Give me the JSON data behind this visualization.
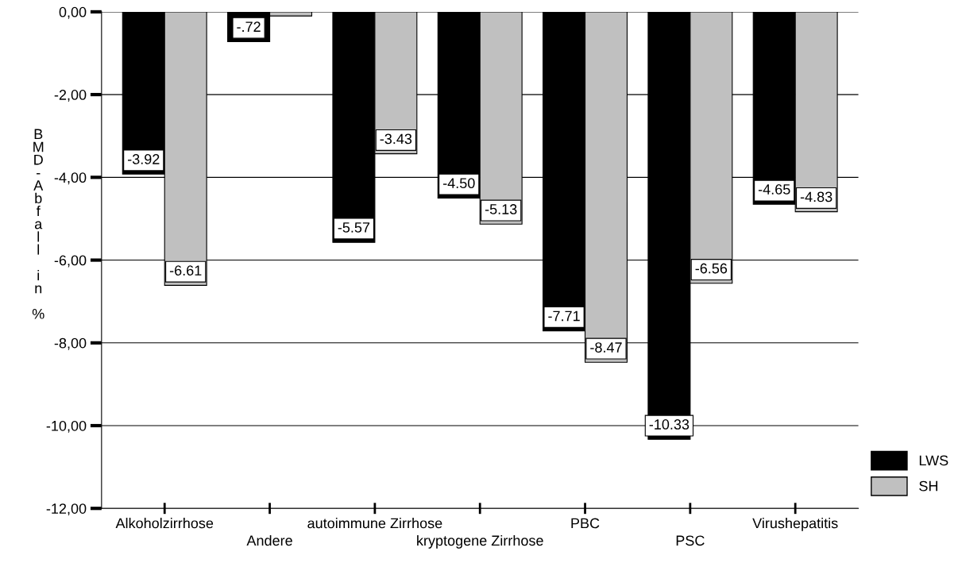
{
  "chart_data": {
    "type": "bar",
    "categories": [
      "Alkoholzirrhose",
      "Andere",
      "autoimmune Zirrhose",
      "kryptogene Zirrhose",
      "PBC",
      "PSC",
      "Virushepatitis"
    ],
    "ylabel": "BMD-Abfall in %",
    "series": [
      {
        "name": "LWS",
        "color": "#000000",
        "values": [
          -3.92,
          -0.72,
          -5.57,
          -4.5,
          -7.71,
          -10.33,
          -4.65
        ],
        "value_labels": [
          "-3.92",
          "-.72",
          "-5.57",
          "-4.50",
          "-7.71",
          "-10.33",
          "-4.65"
        ]
      },
      {
        "name": "SH",
        "color": "#c0c0c0",
        "values": [
          -6.61,
          -0.1,
          -3.43,
          -5.13,
          -8.47,
          -6.56,
          -4.83
        ],
        "value_labels": [
          "-6.61",
          null,
          "-3.43",
          "-5.13",
          "-8.47",
          "-6.56",
          "-4.83"
        ]
      }
    ],
    "ylim": [
      -12,
      0
    ],
    "yticks": [
      {
        "value": 0,
        "label": "0,00"
      },
      {
        "value": -2,
        "label": "-2,00"
      },
      {
        "value": -4,
        "label": "-4,00"
      },
      {
        "value": -6,
        "label": "-6,00"
      },
      {
        "value": -8,
        "label": "-8,00"
      },
      {
        "value": -10,
        "label": "-10,00"
      },
      {
        "value": -12,
        "label": "-12,00"
      }
    ],
    "grid": "y",
    "legend": "bottom right"
  }
}
